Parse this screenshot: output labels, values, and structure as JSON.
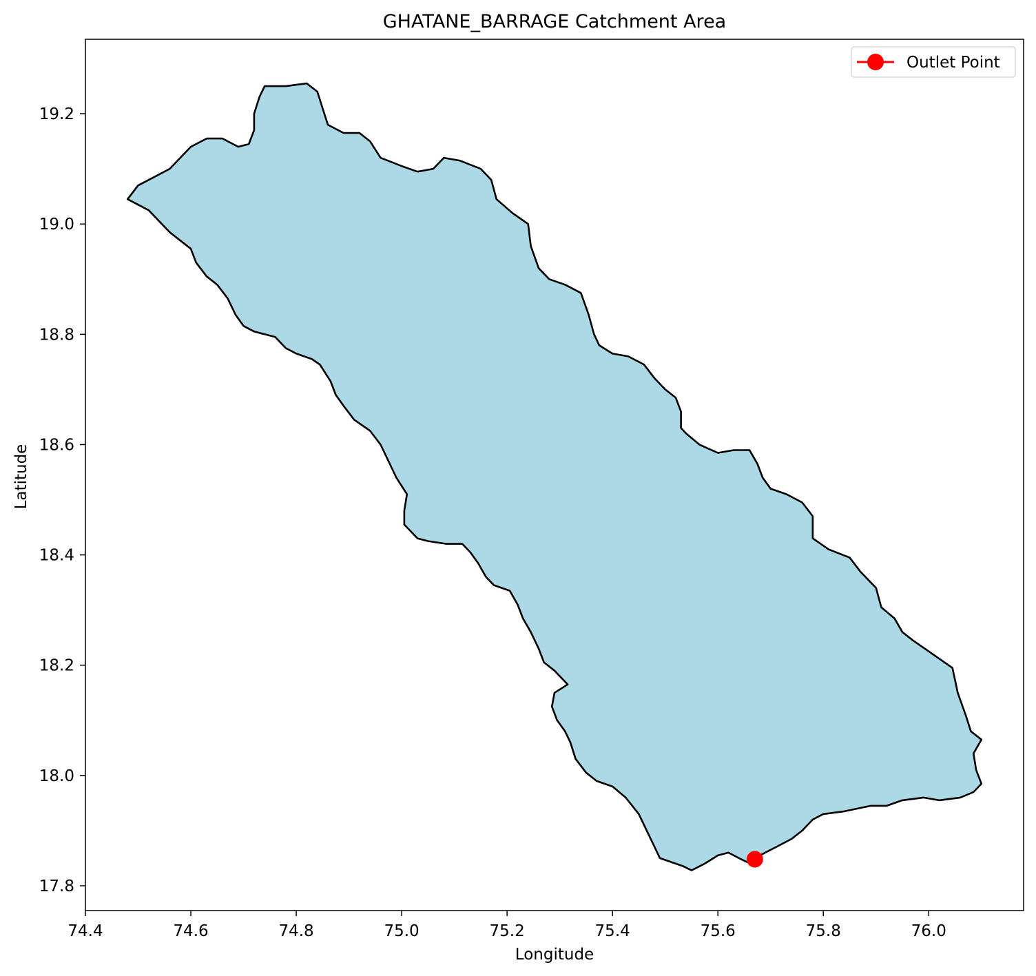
{
  "chart_data": {
    "type": "map",
    "title": "GHATANE_BARRAGE Catchment Area",
    "xlabel": "Longitude",
    "ylabel": "Latitude",
    "xlim": [
      74.4,
      76.18
    ],
    "ylim": [
      17.755,
      19.335
    ],
    "xticks": [
      74.4,
      74.6,
      74.8,
      75.0,
      75.2,
      75.4,
      75.6,
      75.8,
      76.0
    ],
    "xtick_labels": [
      "74.4",
      "74.6",
      "74.8",
      "75.0",
      "75.2",
      "75.4",
      "75.6",
      "75.8",
      "76.0"
    ],
    "yticks": [
      17.8,
      18.0,
      18.2,
      18.4,
      18.6,
      18.8,
      19.0,
      19.2
    ],
    "ytick_labels": [
      "17.8",
      "18.0",
      "18.2",
      "18.4",
      "18.6",
      "18.8",
      "19.0",
      "19.2"
    ],
    "grid": false,
    "legend": {
      "position": "upper right",
      "entries": [
        {
          "label": "Outlet Point",
          "marker": "circle",
          "color": "#ff0000"
        }
      ]
    },
    "colors": {
      "catchment_fill": "#add8e6",
      "catchment_edge": "#000000",
      "outlet": "#ff0000"
    },
    "outlet_point": {
      "lon": 75.67,
      "lat": 17.848
    },
    "catchment_boundary": [
      [
        74.48,
        19.045
      ],
      [
        74.5,
        19.07
      ],
      [
        74.53,
        19.085
      ],
      [
        74.56,
        19.1
      ],
      [
        74.58,
        19.12
      ],
      [
        74.6,
        19.14
      ],
      [
        74.63,
        19.155
      ],
      [
        74.66,
        19.155
      ],
      [
        74.69,
        19.14
      ],
      [
        74.71,
        19.145
      ],
      [
        74.72,
        19.17
      ],
      [
        74.72,
        19.2
      ],
      [
        74.73,
        19.23
      ],
      [
        74.74,
        19.25
      ],
      [
        74.78,
        19.25
      ],
      [
        74.82,
        19.255
      ],
      [
        74.84,
        19.24
      ],
      [
        74.85,
        19.21
      ],
      [
        74.86,
        19.18
      ],
      [
        74.89,
        19.165
      ],
      [
        74.92,
        19.165
      ],
      [
        74.94,
        19.15
      ],
      [
        74.96,
        19.12
      ],
      [
        75.0,
        19.105
      ],
      [
        75.03,
        19.095
      ],
      [
        75.06,
        19.1
      ],
      [
        75.08,
        19.12
      ],
      [
        75.11,
        19.115
      ],
      [
        75.15,
        19.1
      ],
      [
        75.17,
        19.08
      ],
      [
        75.18,
        19.045
      ],
      [
        75.21,
        19.02
      ],
      [
        75.24,
        19.0
      ],
      [
        75.245,
        18.96
      ],
      [
        75.26,
        18.92
      ],
      [
        75.28,
        18.9
      ],
      [
        75.31,
        18.89
      ],
      [
        75.34,
        18.875
      ],
      [
        75.355,
        18.835
      ],
      [
        75.365,
        18.8
      ],
      [
        75.375,
        18.78
      ],
      [
        75.4,
        18.765
      ],
      [
        75.43,
        18.76
      ],
      [
        75.46,
        18.745
      ],
      [
        75.48,
        18.72
      ],
      [
        75.5,
        18.7
      ],
      [
        75.52,
        18.685
      ],
      [
        75.53,
        18.66
      ],
      [
        75.53,
        18.63
      ],
      [
        75.54,
        18.62
      ],
      [
        75.565,
        18.6
      ],
      [
        75.6,
        18.585
      ],
      [
        75.63,
        18.59
      ],
      [
        75.66,
        18.59
      ],
      [
        75.675,
        18.565
      ],
      [
        75.685,
        18.54
      ],
      [
        75.7,
        18.52
      ],
      [
        75.73,
        18.51
      ],
      [
        75.76,
        18.495
      ],
      [
        75.78,
        18.47
      ],
      [
        75.78,
        18.43
      ],
      [
        75.81,
        18.41
      ],
      [
        75.85,
        18.395
      ],
      [
        75.87,
        18.37
      ],
      [
        75.9,
        18.34
      ],
      [
        75.91,
        18.305
      ],
      [
        75.935,
        18.285
      ],
      [
        75.95,
        18.26
      ],
      [
        75.97,
        18.245
      ],
      [
        76.0,
        18.225
      ],
      [
        76.045,
        18.195
      ],
      [
        76.055,
        18.15
      ],
      [
        76.07,
        18.11
      ],
      [
        76.08,
        18.08
      ],
      [
        76.1,
        18.065
      ],
      [
        76.085,
        18.04
      ],
      [
        76.09,
        18.01
      ],
      [
        76.1,
        17.985
      ],
      [
        76.085,
        17.97
      ],
      [
        76.06,
        17.96
      ],
      [
        76.02,
        17.955
      ],
      [
        75.99,
        17.96
      ],
      [
        75.95,
        17.955
      ],
      [
        75.92,
        17.945
      ],
      [
        75.89,
        17.945
      ],
      [
        75.84,
        17.935
      ],
      [
        75.8,
        17.93
      ],
      [
        75.78,
        17.92
      ],
      [
        75.76,
        17.9
      ],
      [
        75.74,
        17.885
      ],
      [
        75.71,
        17.87
      ],
      [
        75.68,
        17.855
      ],
      [
        75.67,
        17.842
      ],
      [
        75.655,
        17.843
      ],
      [
        75.64,
        17.85
      ],
      [
        75.62,
        17.86
      ],
      [
        75.6,
        17.855
      ],
      [
        75.575,
        17.84
      ],
      [
        75.55,
        17.828
      ],
      [
        75.535,
        17.835
      ],
      [
        75.52,
        17.84
      ],
      [
        75.49,
        17.85
      ],
      [
        75.48,
        17.87
      ],
      [
        75.47,
        17.89
      ],
      [
        75.45,
        17.93
      ],
      [
        75.425,
        17.96
      ],
      [
        75.4,
        17.98
      ],
      [
        75.37,
        17.99
      ],
      [
        75.35,
        18.005
      ],
      [
        75.33,
        18.03
      ],
      [
        75.32,
        18.06
      ],
      [
        75.31,
        18.08
      ],
      [
        75.295,
        18.1
      ],
      [
        75.285,
        18.125
      ],
      [
        75.29,
        18.15
      ],
      [
        75.315,
        18.165
      ],
      [
        75.29,
        18.19
      ],
      [
        75.27,
        18.205
      ],
      [
        75.26,
        18.23
      ],
      [
        75.245,
        18.26
      ],
      [
        75.23,
        18.285
      ],
      [
        75.22,
        18.31
      ],
      [
        75.205,
        18.335
      ],
      [
        75.175,
        18.345
      ],
      [
        75.16,
        18.36
      ],
      [
        75.145,
        18.385
      ],
      [
        75.13,
        18.405
      ],
      [
        75.115,
        18.42
      ],
      [
        75.085,
        18.42
      ],
      [
        75.05,
        18.425
      ],
      [
        75.03,
        18.43
      ],
      [
        75.005,
        18.455
      ],
      [
        75.005,
        18.48
      ],
      [
        75.01,
        18.51
      ],
      [
        74.99,
        18.54
      ],
      [
        74.975,
        18.57
      ],
      [
        74.96,
        18.6
      ],
      [
        74.94,
        18.625
      ],
      [
        74.91,
        18.645
      ],
      [
        74.89,
        18.67
      ],
      [
        74.875,
        18.69
      ],
      [
        74.865,
        18.715
      ],
      [
        74.845,
        18.745
      ],
      [
        74.83,
        18.755
      ],
      [
        74.8,
        18.765
      ],
      [
        74.78,
        18.775
      ],
      [
        74.76,
        18.795
      ],
      [
        74.72,
        18.805
      ],
      [
        74.7,
        18.815
      ],
      [
        74.685,
        18.835
      ],
      [
        74.67,
        18.865
      ],
      [
        74.65,
        18.89
      ],
      [
        74.63,
        18.905
      ],
      [
        74.61,
        18.93
      ],
      [
        74.6,
        18.955
      ],
      [
        74.58,
        18.97
      ],
      [
        74.56,
        18.985
      ],
      [
        74.54,
        19.005
      ],
      [
        74.52,
        19.025
      ],
      [
        74.5,
        19.035
      ]
    ]
  }
}
